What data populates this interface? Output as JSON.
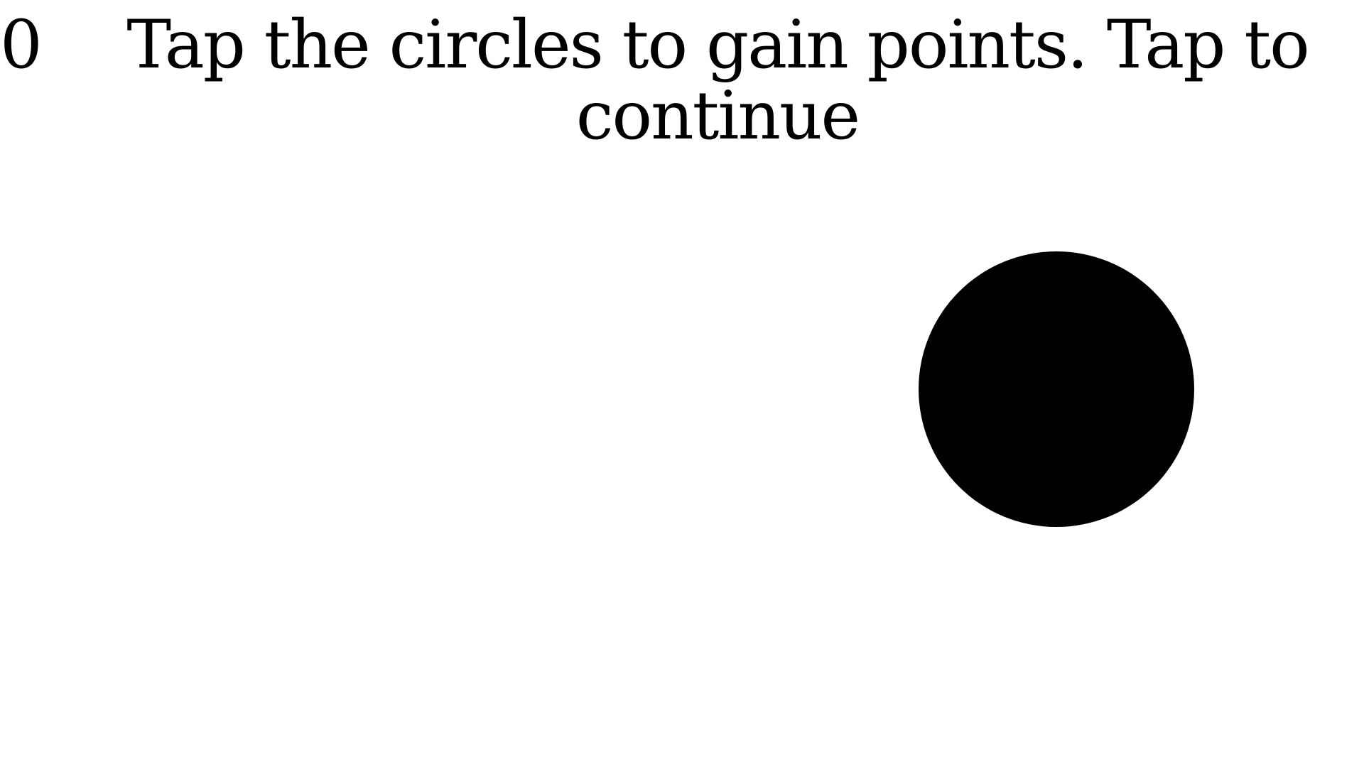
{
  "game": {
    "score": "0",
    "instructions": "Tap the circles to gain points. Tap to continue",
    "target": {
      "shape": "circle",
      "color": "#000000"
    },
    "background_color": "#ffffff"
  }
}
